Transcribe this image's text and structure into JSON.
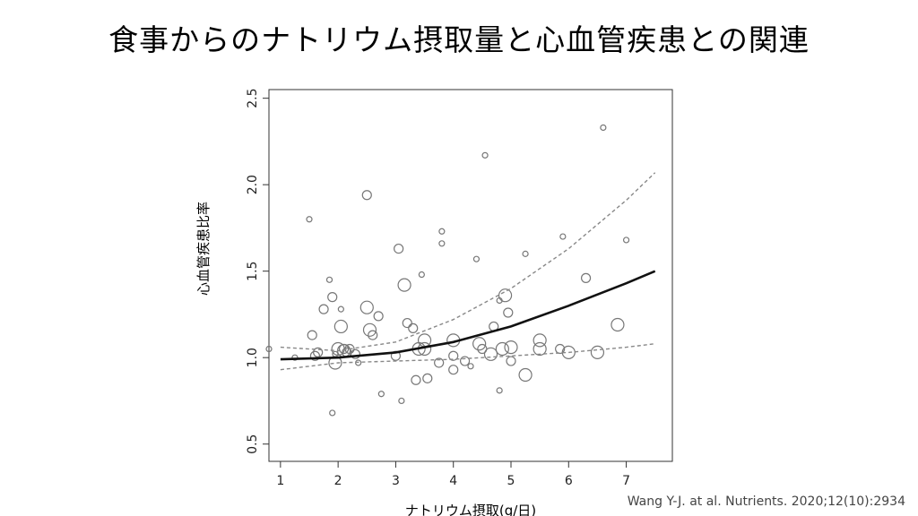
{
  "slide": {
    "title": "食事からのナトリウム摂取量と心血管疾患との関連",
    "citation": "Wang Y-J. at al. Nutrients. 2020;12(10):2934"
  },
  "chart_data": {
    "type": "scatter",
    "title": "",
    "xlabel": "ナトリウム摂取(g/日)",
    "ylabel": "心血管疾患比率",
    "xlim": [
      0.8,
      7.8
    ],
    "ylim": [
      0.4,
      2.55
    ],
    "xticks": [
      "1",
      "2",
      "3",
      "4",
      "5",
      "6",
      "7"
    ],
    "yticks": [
      "0.5",
      "1.0",
      "1.5",
      "2.0",
      "2.5"
    ],
    "grid": false,
    "legend": "none",
    "colors": {
      "points": "#777777",
      "fit": "#111111",
      "ci": "#888888"
    },
    "series": [
      {
        "kind": "points",
        "x": [
          0.8,
          1.25,
          1.5,
          1.55,
          1.6,
          1.65,
          1.75,
          1.85,
          1.9,
          1.9,
          1.95,
          1.95,
          2.0,
          2.05,
          2.05,
          2.1,
          2.1,
          2.15,
          2.2,
          2.3,
          2.35,
          2.5,
          2.5,
          2.55,
          2.6,
          2.7,
          2.75,
          3.0,
          3.05,
          3.1,
          3.15,
          3.2,
          3.3,
          3.35,
          3.4,
          3.45,
          3.5,
          3.5,
          3.55,
          3.75,
          3.8,
          3.8,
          4.0,
          4.0,
          4.0,
          4.2,
          4.3,
          4.4,
          4.45,
          4.5,
          4.55,
          4.65,
          4.7,
          4.8,
          4.8,
          4.85,
          4.9,
          4.95,
          5.0,
          5.0,
          5.25,
          5.25,
          5.5,
          5.5,
          5.85,
          5.9,
          6.0,
          6.3,
          6.5,
          6.6,
          6.85,
          7.0
        ],
        "y": [
          1.05,
          1.0,
          1.8,
          1.13,
          1.01,
          1.03,
          1.28,
          1.45,
          1.35,
          0.68,
          0.97,
          1.02,
          1.05,
          1.28,
          1.18,
          1.05,
          1.04,
          1.03,
          1.05,
          1.02,
          0.97,
          1.94,
          1.29,
          1.16,
          1.13,
          1.24,
          0.79,
          1.01,
          1.63,
          0.75,
          1.42,
          1.2,
          1.17,
          0.87,
          1.05,
          1.48,
          1.1,
          1.05,
          0.88,
          0.97,
          1.73,
          1.66,
          1.1,
          1.01,
          0.93,
          0.98,
          0.95,
          1.57,
          1.08,
          1.05,
          2.17,
          1.02,
          1.18,
          0.81,
          1.33,
          1.05,
          1.36,
          1.26,
          1.06,
          0.98,
          1.6,
          0.9,
          1.05,
          1.1,
          1.05,
          1.7,
          1.03,
          1.46,
          1.03,
          2.33,
          1.19,
          1.68
        ],
        "sizes": [
          1,
          1,
          1,
          2,
          2,
          2,
          2,
          1,
          2,
          1,
          3,
          1,
          3,
          1,
          3,
          2,
          3,
          2,
          2,
          2,
          1,
          2,
          3,
          3,
          2,
          2,
          1,
          2,
          2,
          1,
          3,
          2,
          2,
          2,
          3,
          1,
          3,
          3,
          2,
          2,
          1,
          1,
          3,
          2,
          2,
          2,
          1,
          1,
          3,
          2,
          1,
          3,
          2,
          1,
          1,
          3,
          3,
          2,
          3,
          2,
          1,
          3,
          3,
          3,
          2,
          1,
          3,
          2,
          3,
          1,
          3,
          1
        ]
      },
      {
        "kind": "fit",
        "x": [
          1.0,
          2.0,
          3.0,
          4.0,
          5.0,
          6.0,
          7.0,
          7.5
        ],
        "y": [
          0.99,
          1.0,
          1.03,
          1.09,
          1.18,
          1.3,
          1.43,
          1.5
        ]
      },
      {
        "kind": "ci-upper",
        "x": [
          1.0,
          2.0,
          3.0,
          4.0,
          5.0,
          6.0,
          7.0,
          7.5
        ],
        "y": [
          1.06,
          1.04,
          1.09,
          1.22,
          1.4,
          1.63,
          1.91,
          2.07
        ]
      },
      {
        "kind": "ci-lower",
        "x": [
          1.0,
          2.0,
          3.0,
          4.0,
          5.0,
          6.0,
          7.0,
          7.5
        ],
        "y": [
          0.93,
          0.97,
          0.98,
          0.99,
          1.01,
          1.03,
          1.06,
          1.08
        ]
      }
    ]
  }
}
